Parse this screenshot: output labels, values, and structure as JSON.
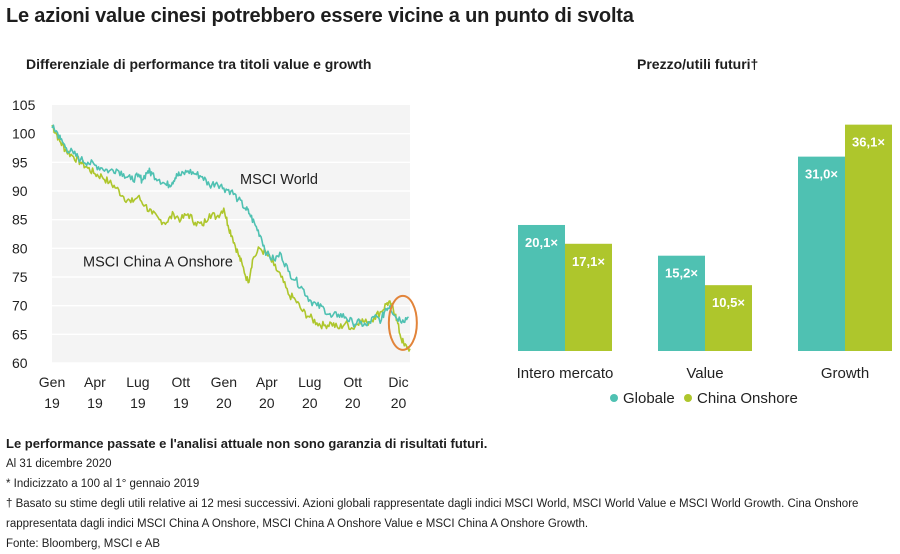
{
  "headline": "Le azioni value cinesi potrebbero essere vicine a un punto di svolta",
  "colors": {
    "globale": "#4fc1b2",
    "china": "#aec62c",
    "circle": "#e2843a"
  },
  "chart_data": [
    {
      "type": "line",
      "title": "Differenziale di performance tra titoli value e growth",
      "ylim": [
        60,
        105
      ],
      "yticks": [
        "105",
        "100",
        "95",
        "90",
        "85",
        "80",
        "75",
        "70",
        "65",
        "60"
      ],
      "xticks": [
        {
          "top": "Gen",
          "bottom": "19"
        },
        {
          "top": "Apr",
          "bottom": "19"
        },
        {
          "top": "Lug",
          "bottom": "19"
        },
        {
          "top": "Ott",
          "bottom": "19"
        },
        {
          "top": "Gen",
          "bottom": "20"
        },
        {
          "top": "Apr",
          "bottom": "20"
        },
        {
          "top": "Lug",
          "bottom": "20"
        },
        {
          "top": "Ott",
          "bottom": "20"
        },
        {
          "top": "Dic",
          "bottom": "20"
        }
      ],
      "x_unit": "month index from Gen 19",
      "series": [
        {
          "name": "MSCI World",
          "points": [
            [
              0,
              101
            ],
            [
              0.3,
              100.5
            ],
            [
              0.6,
              99
            ],
            [
              1,
              97.5
            ],
            [
              1.5,
              96.5
            ],
            [
              2,
              95.5
            ],
            [
              2.5,
              95
            ],
            [
              3,
              94.5
            ],
            [
              3.5,
              94
            ],
            [
              4,
              93.5
            ],
            [
              4.5,
              93.8
            ],
            [
              5,
              93
            ],
            [
              5.5,
              92
            ],
            [
              6,
              92.5
            ],
            [
              6.3,
              92
            ],
            [
              6.7,
              93.5
            ],
            [
              7,
              93
            ],
            [
              7.5,
              92
            ],
            [
              8,
              91
            ],
            [
              8.4,
              91.5
            ],
            [
              8.7,
              93
            ],
            [
              9,
              92.7
            ],
            [
              9.5,
              93.5
            ],
            [
              10,
              93
            ],
            [
              10.5,
              92.5
            ],
            [
              11,
              91
            ],
            [
              11.5,
              91.5
            ],
            [
              12,
              90.5
            ],
            [
              12.5,
              90
            ],
            [
              13,
              88.5
            ],
            [
              13.5,
              87
            ],
            [
              13.8,
              86
            ],
            [
              14.2,
              84
            ],
            [
              14.6,
              82
            ],
            [
              15,
              79
            ],
            [
              15.5,
              78
            ],
            [
              16,
              79
            ],
            [
              16.5,
              76
            ],
            [
              17,
              74.5
            ],
            [
              17.5,
              73
            ],
            [
              18,
              71
            ],
            [
              18.5,
              70
            ],
            [
              19,
              69.5
            ],
            [
              19.5,
              68
            ],
            [
              20,
              68.5
            ],
            [
              20.5,
              68
            ],
            [
              21,
              67
            ],
            [
              21.5,
              67
            ],
            [
              22,
              66.5
            ],
            [
              22.5,
              68
            ],
            [
              23,
              67.5
            ],
            [
              23.3,
              69.5
            ],
            [
              23.6,
              70
            ],
            [
              24,
              68
            ],
            [
              24.5,
              67.5
            ],
            [
              24.9,
              68
            ]
          ]
        },
        {
          "name": "MSCI China A Onshore",
          "points": [
            [
              0,
              101.5
            ],
            [
              0.3,
              100
            ],
            [
              0.6,
              98.5
            ],
            [
              1,
              97
            ],
            [
              1.5,
              96
            ],
            [
              2,
              95
            ],
            [
              2.5,
              94
            ],
            [
              3,
              93
            ],
            [
              3.5,
              92.5
            ],
            [
              4,
              91.5
            ],
            [
              4.5,
              90.5
            ],
            [
              5,
              89
            ],
            [
              5.5,
              88
            ],
            [
              6,
              89
            ],
            [
              6.5,
              87.5
            ],
            [
              7,
              86
            ],
            [
              7.5,
              85
            ],
            [
              8,
              84.5
            ],
            [
              8.5,
              86
            ],
            [
              9,
              85
            ],
            [
              9.5,
              86
            ],
            [
              10,
              84.5
            ],
            [
              10.5,
              84
            ],
            [
              11,
              86
            ],
            [
              11.5,
              85.5
            ],
            [
              12,
              87
            ],
            [
              12.3,
              84
            ],
            [
              12.6,
              82
            ],
            [
              13,
              79
            ],
            [
              13.3,
              77
            ],
            [
              13.7,
              74
            ],
            [
              14,
              78
            ],
            [
              14.5,
              80
            ],
            [
              15,
              79
            ],
            [
              15.5,
              77
            ],
            [
              16,
              75
            ],
            [
              16.5,
              72
            ],
            [
              17,
              71
            ],
            [
              17.5,
              69
            ],
            [
              18,
              68
            ],
            [
              18.5,
              67
            ],
            [
              19,
              66.5
            ],
            [
              19.5,
              67
            ],
            [
              20,
              66
            ],
            [
              20.5,
              67
            ],
            [
              21,
              66
            ],
            [
              21.5,
              67.5
            ],
            [
              22,
              67
            ],
            [
              22.5,
              68
            ],
            [
              23,
              69
            ],
            [
              23.4,
              70.5
            ],
            [
              23.7,
              70
            ],
            [
              24,
              68.5
            ],
            [
              24.3,
              65
            ],
            [
              24.6,
              63
            ],
            [
              25,
              62.5
            ]
          ]
        }
      ],
      "annotations": [
        "MSCI World",
        "MSCI China A Onshore"
      ]
    },
    {
      "type": "bar",
      "title": "Prezzo/utili futuri†",
      "categories": [
        "Intero mercato",
        "Value",
        "Growth"
      ],
      "ylim": [
        0,
        40
      ],
      "series": [
        {
          "name": "Globale",
          "values": [
            20.1,
            15.2,
            31.0
          ],
          "labels": [
            "20,1×",
            "15,2×",
            "31,0×"
          ]
        },
        {
          "name": "China Onshore",
          "values": [
            17.1,
            10.5,
            36.1
          ],
          "labels": [
            "17,1×",
            "10,5×",
            "36,1×"
          ]
        }
      ],
      "legend": "bottom"
    }
  ],
  "notes": {
    "disclaimer": "Le performance passate e l'analisi attuale non sono garanzia di risultati futuri.",
    "date": "Al 31 dicembre 2020",
    "index_note": "* Indicizzato a 100 al 1° gennaio 2019",
    "dagger_note": "† Basato su stime degli utili relative ai 12 mesi successivi. Azioni globali rappresentate dagli indici MSCI World, MSCI World Value e MSCI World Growth. Cina Onshore rappresentata dagli indici MSCI China A Onshore, MSCI China A Onshore Value e MSCI China A Onshore Growth.",
    "source": "Fonte: Bloomberg, MSCI e AB"
  }
}
